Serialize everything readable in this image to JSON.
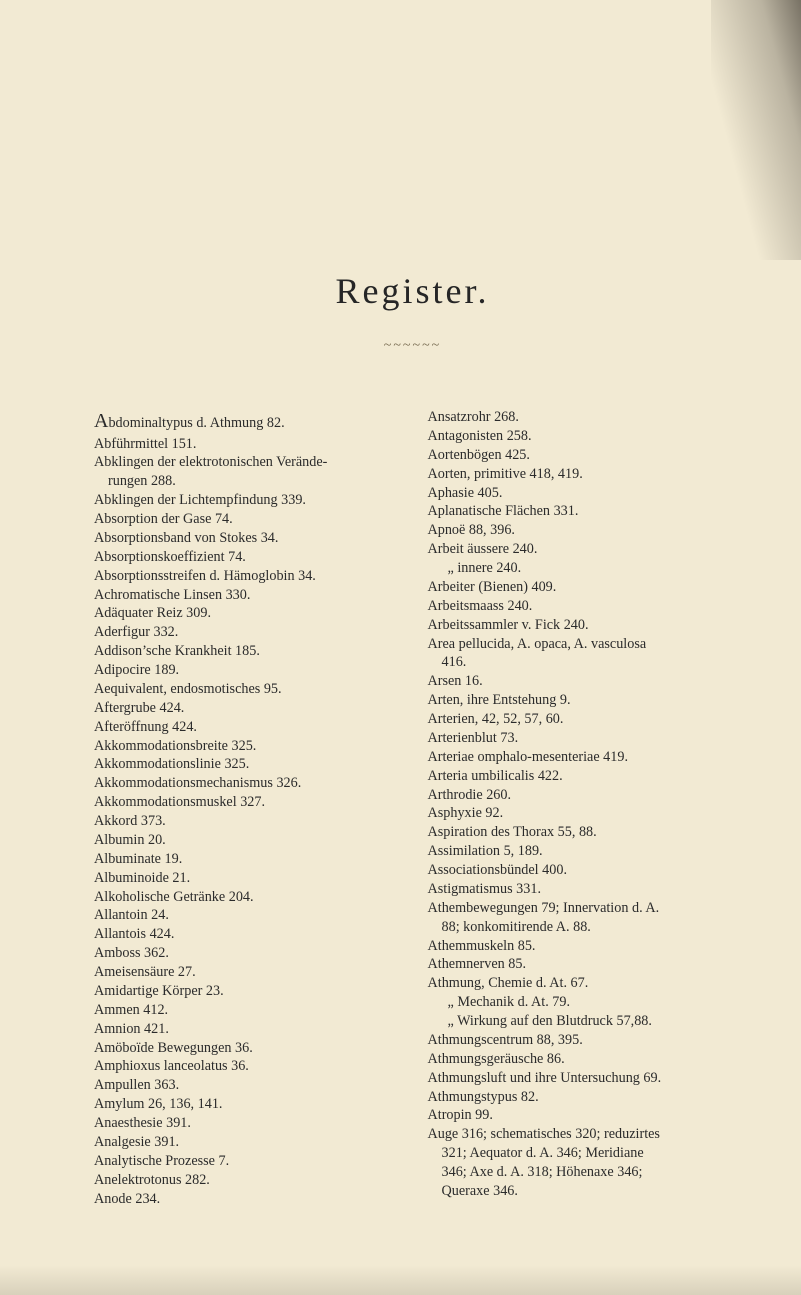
{
  "title": "Register.",
  "divider": "~~~~~~",
  "colors": {
    "page_bg": "#f2ead3",
    "text": "#2c2c2c",
    "divider": "#706348"
  },
  "left_col": [
    {
      "t": "Abdominaltypus d. Athmung 82.",
      "bigcap": true
    },
    {
      "t": "Abführmittel 151."
    },
    {
      "t": "Abklingen der elektrotonischen Verände-"
    },
    {
      "t": "rungen 288.",
      "cls": "cont"
    },
    {
      "t": "Abklingen der Lichtempfindung 339."
    },
    {
      "t": "Absorption der Gase 74."
    },
    {
      "t": "Absorptionsband von Stokes 34."
    },
    {
      "t": "Absorptionskoeffizient 74."
    },
    {
      "t": "Absorptionsstreifen d. Hämoglobin 34."
    },
    {
      "t": "Achromatische Linsen 330."
    },
    {
      "t": "Adäquater Reiz 309."
    },
    {
      "t": "Aderfigur 332."
    },
    {
      "t": "Addison’sche Krankheit 185."
    },
    {
      "t": "Adipocire 189."
    },
    {
      "t": "Aequivalent, endosmotisches 95."
    },
    {
      "t": "Aftergrube 424."
    },
    {
      "t": "Afteröffnung 424."
    },
    {
      "t": "Akkommodationsbreite 325."
    },
    {
      "t": "Akkommodationslinie 325."
    },
    {
      "t": "Akkommodationsmechanismus 326."
    },
    {
      "t": "Akkommodationsmuskel 327."
    },
    {
      "t": "Akkord 373."
    },
    {
      "t": "Albumin 20."
    },
    {
      "t": "Albuminate 19."
    },
    {
      "t": "Albuminoide 21."
    },
    {
      "t": "Alkoholische Getränke 204."
    },
    {
      "t": "Allantoin 24."
    },
    {
      "t": "Allantois 424."
    },
    {
      "t": "Amboss 362."
    },
    {
      "t": "Ameisensäure 27."
    },
    {
      "t": "Amidartige Körper 23."
    },
    {
      "t": "Ammen 412."
    },
    {
      "t": "Amnion 421."
    },
    {
      "t": "Amöboïde Bewegungen 36."
    },
    {
      "t": "Amphioxus lanceolatus 36."
    },
    {
      "t": "Ampullen 363."
    },
    {
      "t": "Amylum 26, 136, 141."
    },
    {
      "t": "Anaesthesie 391."
    },
    {
      "t": "Analgesie 391."
    },
    {
      "t": "Analytische Prozesse 7."
    },
    {
      "t": "Anelektrotonus 282."
    },
    {
      "t": "Anode 234."
    }
  ],
  "right_col": [
    {
      "t": "Ansatzrohr 268."
    },
    {
      "t": "Antagonisten 258."
    },
    {
      "t": "Aortenbögen 425."
    },
    {
      "t": "Aorten, primitive 418, 419."
    },
    {
      "t": "Aphasie 405."
    },
    {
      "t": "Aplanatische Flächen 331."
    },
    {
      "t": "Apnoë 88, 396."
    },
    {
      "t": "Arbeit äussere 240."
    },
    {
      "t": "„     innere 240.",
      "cls": "sub"
    },
    {
      "t": "Arbeiter (Bienen) 409."
    },
    {
      "t": "Arbeitsmaass 240."
    },
    {
      "t": "Arbeitssammler v. Fick 240."
    },
    {
      "t": "Area pellucida, A. opaca, A. vasculosa"
    },
    {
      "t": "416.",
      "cls": "cont"
    },
    {
      "t": "Arsen 16."
    },
    {
      "t": "Arten, ihre Entstehung 9."
    },
    {
      "t": "Arterien, 42, 52, 57, 60."
    },
    {
      "t": "Arterienblut 73."
    },
    {
      "t": "Arteriae omphalo-mesenteriae 419."
    },
    {
      "t": "Arteria umbilicalis 422."
    },
    {
      "t": "Arthrodie 260."
    },
    {
      "t": "Asphyxie 92."
    },
    {
      "t": "Aspiration des Thorax 55, 88."
    },
    {
      "t": "Assimilation 5, 189."
    },
    {
      "t": "Associationsbündel 400."
    },
    {
      "t": "Astigmatismus 331."
    },
    {
      "t": "Athembewegungen 79; Innervation d. A."
    },
    {
      "t": "88; konkomitirende A. 88.",
      "cls": "cont"
    },
    {
      "t": "Athemmuskeln 85."
    },
    {
      "t": "Athemnerven 85."
    },
    {
      "t": "Athmung, Chemie d. At. 67."
    },
    {
      "t": "„     Mechanik d. At. 79.",
      "cls": "sub"
    },
    {
      "t": "„     Wirkung auf den Blutdruck 57,88.",
      "cls": "sub"
    },
    {
      "t": "Athmungscentrum 88, 395."
    },
    {
      "t": "Athmungsgeräusche 86."
    },
    {
      "t": "Athmungsluft und ihre Untersuchung 69."
    },
    {
      "t": "Athmungstypus 82."
    },
    {
      "t": "Atropin 99."
    },
    {
      "t": "Auge 316; schematisches 320; reduzirtes"
    },
    {
      "t": "321; Aequator d. A. 346; Meridiane",
      "cls": "cont"
    },
    {
      "t": "346; Axe d. A. 318; Höhenaxe 346;",
      "cls": "cont"
    },
    {
      "t": "Queraxe 346.",
      "cls": "cont"
    }
  ]
}
